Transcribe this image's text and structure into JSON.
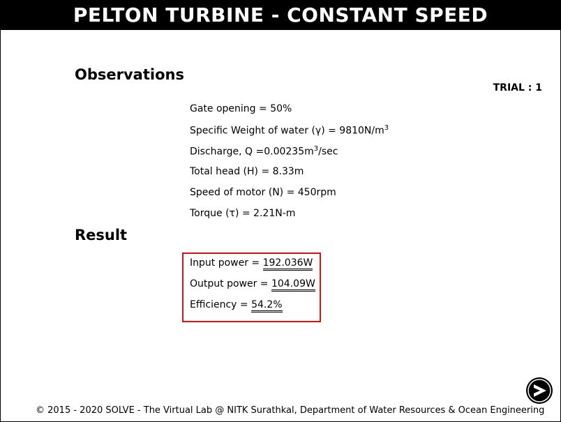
{
  "header": {
    "title": "PELTON TURBINE - CONSTANT SPEED"
  },
  "observations": {
    "heading": "Observations",
    "trial": "TRIAL : 1",
    "gate_opening": "Gate opening = 50%",
    "specific_weight_prefix": "Specific Weight of water (γ) = 9810N/m",
    "specific_weight_sup": "3",
    "discharge_prefix": "Discharge, Q =0.00235m",
    "discharge_sup": "3",
    "discharge_suffix": "/sec",
    "total_head": "Total head (H) = 8.33m",
    "speed": "Speed of motor (N) = 450rpm",
    "torque": "Torque (τ) = 2.21N-m"
  },
  "result": {
    "heading": "Result",
    "input_power_label": "Input power = ",
    "input_power_value": "192.036W",
    "output_power_label": "Output power = ",
    "output_power_value": "104.09W",
    "efficiency_label": "Efficiency = ",
    "efficiency_value": "54.2%"
  },
  "navigation": {
    "next_icon": "next-arrow-icon"
  },
  "footer": {
    "text": "© 2015 - 2020 SOLVE - The Virtual Lab @ NITK Surathkal, Department of Water Resources & Ocean Engineering"
  },
  "colors": {
    "header_bg": "#000000",
    "result_border": "#d0121b"
  }
}
